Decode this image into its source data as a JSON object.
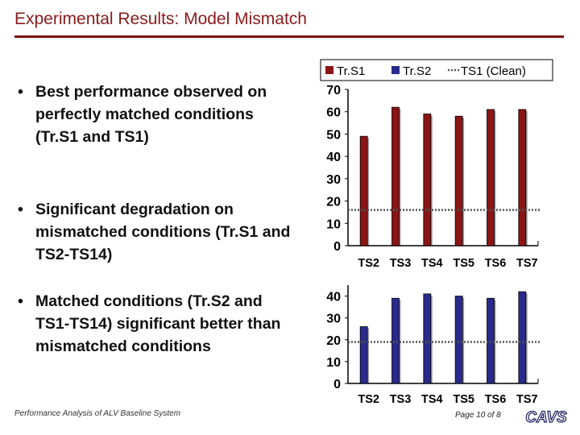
{
  "slide": {
    "title": "Experimental Results: Model Mismatch",
    "bullets": [
      "Best performance observed on perfectly matched conditions (Tr.S1 and TS1)",
      "Significant degradation on mismatched conditions (Tr.S1 and TS2-TS14)",
      "Matched conditions (Tr.S2 and TS1-TS14) significant better than mismatched conditions"
    ],
    "bullet_symbol": "•",
    "footer_left": "Performance Analysis of ALV Baseline System",
    "footer_right": "Page 10 of 8",
    "logo_text": "CAVS"
  },
  "legend": {
    "items": [
      {
        "label": "Tr.S1",
        "color": "#8b1515",
        "kind": "square"
      },
      {
        "label": "Tr.S2",
        "color": "#2a2a8c",
        "kind": "square"
      },
      {
        "label": "TS1 (Clean)",
        "color": "#555555",
        "kind": "dotted-line"
      }
    ]
  },
  "colors": {
    "trs1": "#8b1515",
    "trs2": "#2a2a8c",
    "title": "#8a1a1a",
    "rule": "#7a1010"
  },
  "chart_data": [
    {
      "type": "bar",
      "series": [
        {
          "name": "Tr.S1",
          "values": [
            49,
            62,
            59,
            58,
            61,
            61
          ]
        }
      ],
      "categories": [
        "TS2",
        "TS3",
        "TS4",
        "TS5",
        "TS6",
        "TS7"
      ],
      "ytick_labels": [
        "0",
        "10",
        "20",
        "30",
        "40",
        "50",
        "60",
        "70"
      ],
      "xtick_labels": [
        "TS2",
        "TS3",
        "TS4",
        "TS5",
        "TS6",
        "TS7"
      ],
      "ylim": [
        0,
        70
      ],
      "reference_line": {
        "name": "TS1 (Clean)",
        "value": 16
      },
      "grid": false
    },
    {
      "type": "bar",
      "series": [
        {
          "name": "Tr.S2",
          "values": [
            26,
            39,
            41,
            40,
            39,
            42
          ]
        }
      ],
      "categories": [
        "TS2",
        "TS3",
        "TS4",
        "TS5",
        "TS6",
        "TS7"
      ],
      "ytick_labels": [
        "0",
        "10",
        "20",
        "30",
        "40"
      ],
      "xtick_labels": [
        "TS2",
        "TS3",
        "TS4",
        "TS5",
        "TS6",
        "TS7"
      ],
      "ylim": [
        0,
        45
      ],
      "reference_line": {
        "name": "TS1 (Clean)",
        "value": 19
      },
      "grid": false
    }
  ]
}
